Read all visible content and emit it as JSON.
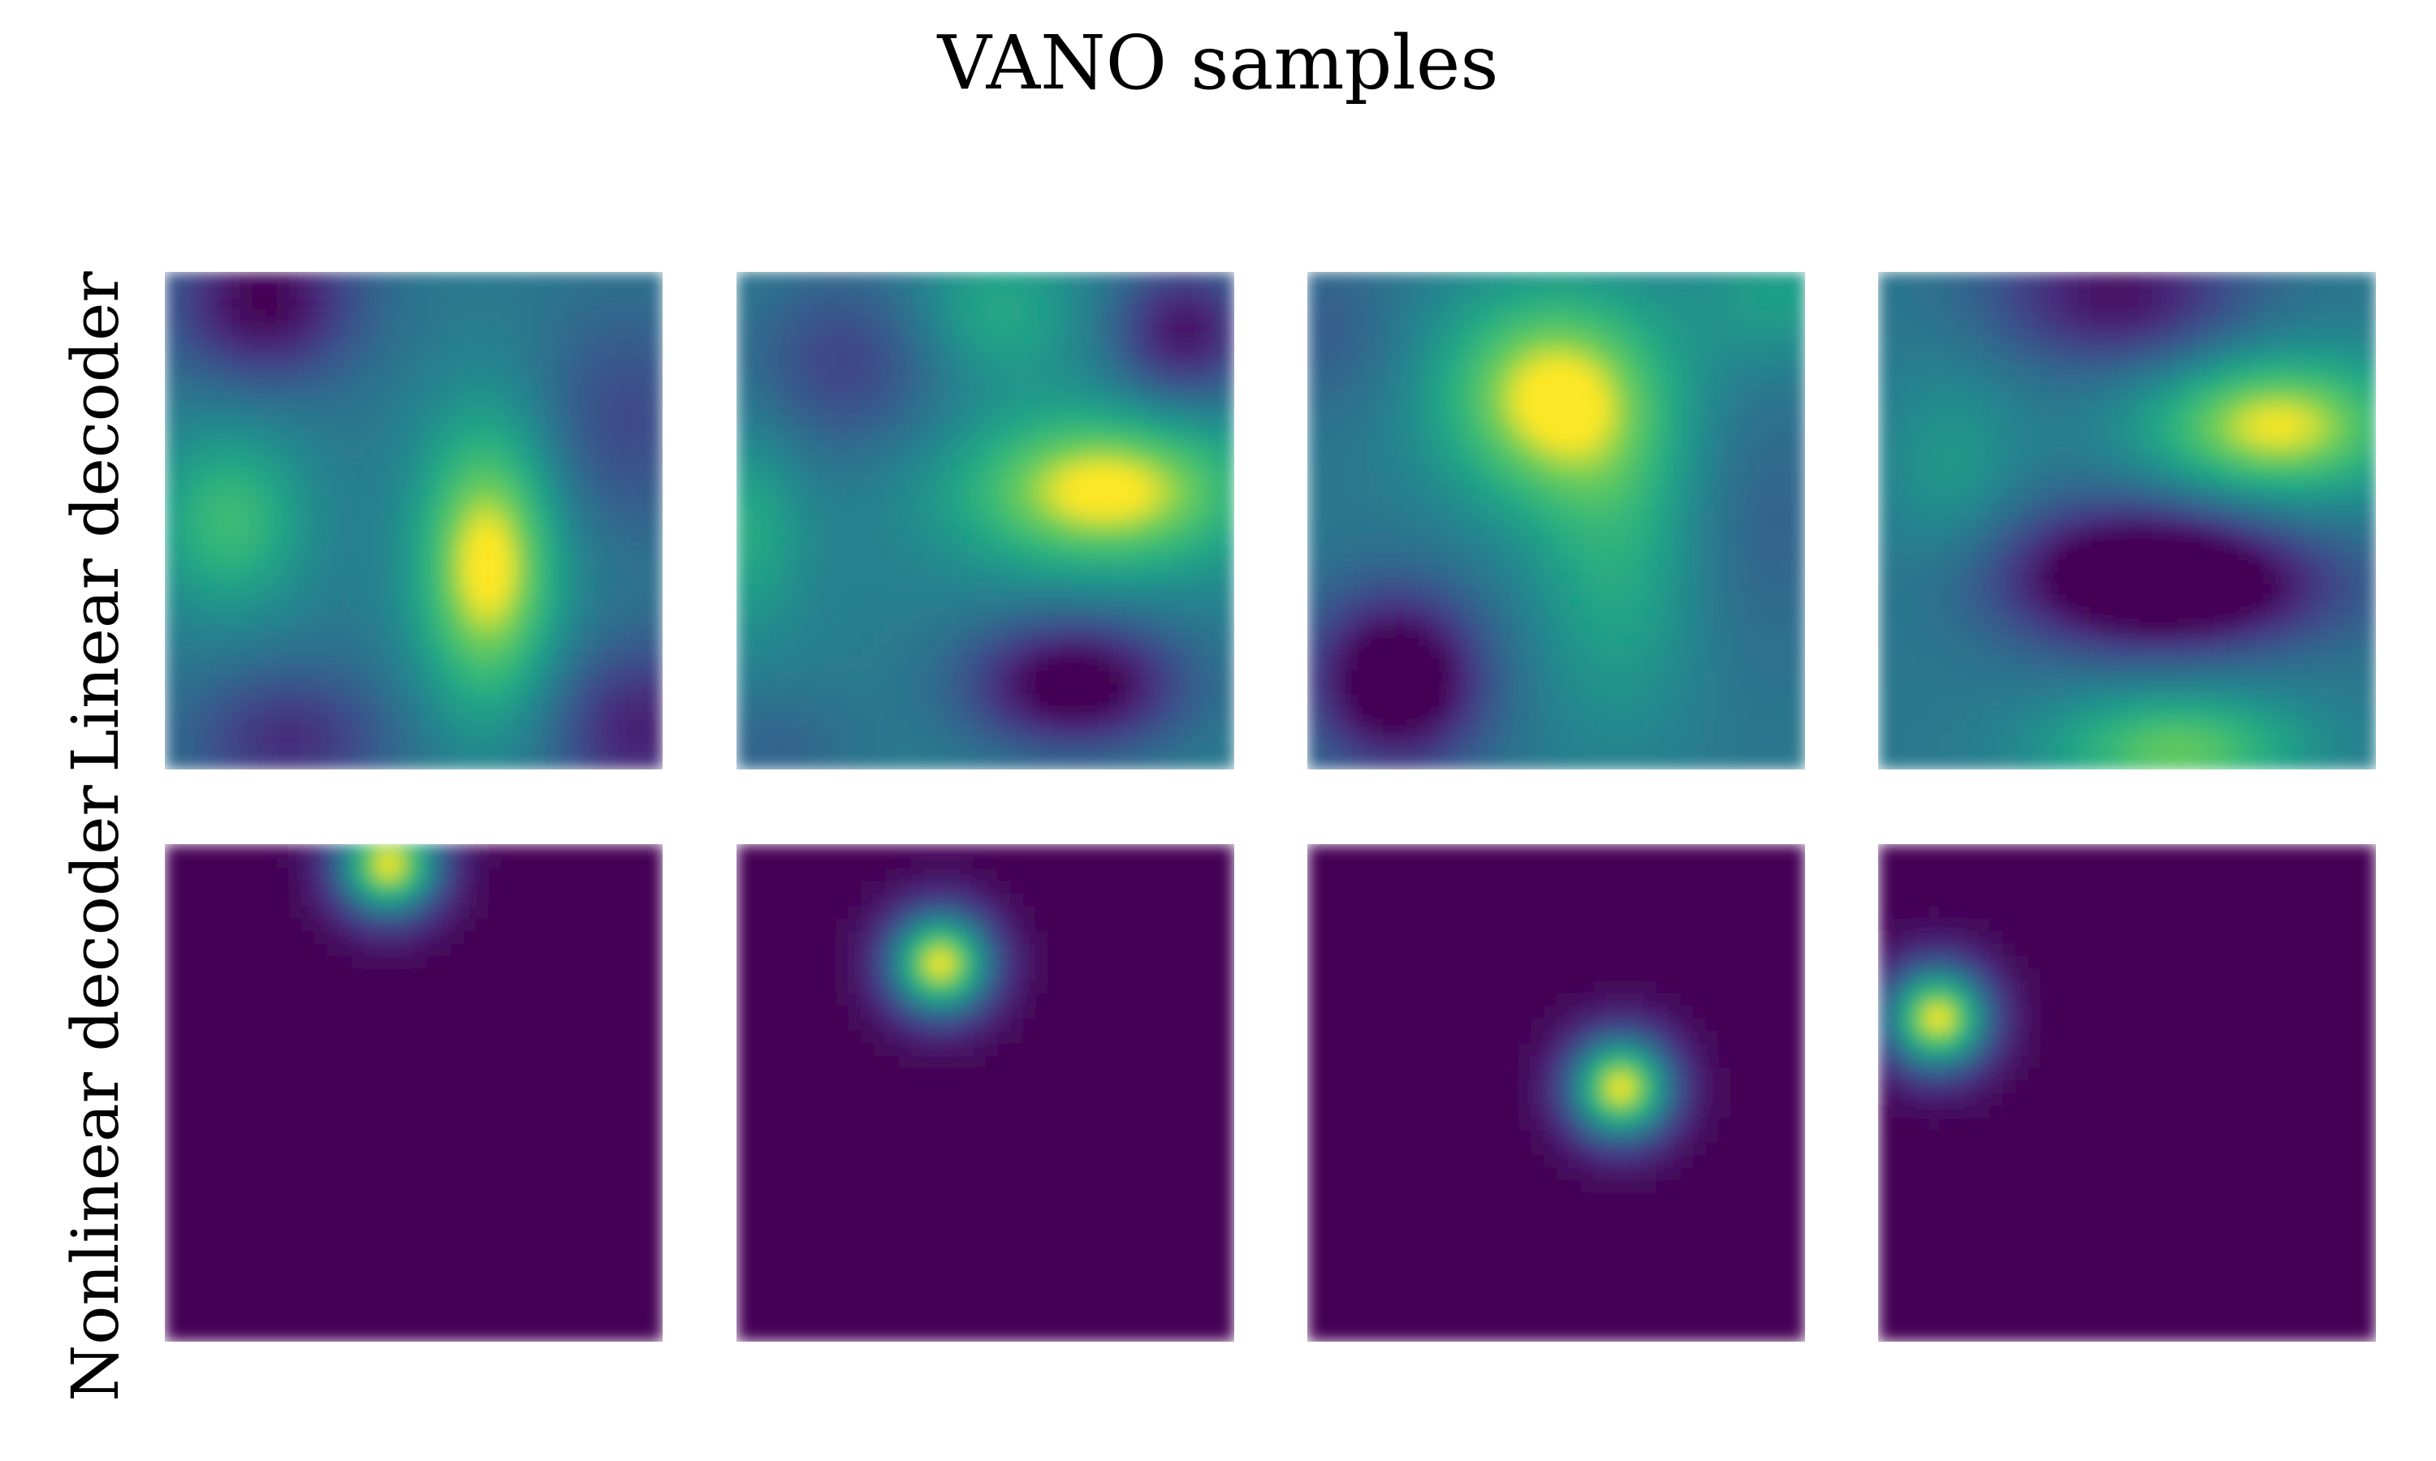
{
  "chart_data": {
    "type": "heatmap",
    "title": "VANO samples",
    "xlabel": "",
    "ylabel": "",
    "colormap": "viridis",
    "axes_visible": false,
    "grid": false,
    "colorbar": false,
    "domain": {
      "x": [
        0,
        1
      ],
      "y": [
        0,
        1
      ]
    },
    "rows": [
      {
        "label": "Linear decoder",
        "samples": [
          {
            "description": "smooth Gaussian-process-like field",
            "background": 0.45,
            "bumps": [
              {
                "x": 0.2,
                "y": 0.06,
                "sx": 0.13,
                "sy": 0.11,
                "amp": -0.45
              },
              {
                "x": 0.13,
                "y": 0.5,
                "sx": 0.11,
                "sy": 0.13,
                "amp": 0.32
              },
              {
                "x": 0.65,
                "y": 0.59,
                "sx": 0.1,
                "sy": 0.2,
                "amp": 0.58
              },
              {
                "x": 0.25,
                "y": 0.94,
                "sx": 0.14,
                "sy": 0.1,
                "amp": -0.3
              },
              {
                "x": 0.92,
                "y": 0.3,
                "sx": 0.12,
                "sy": 0.16,
                "amp": -0.2
              },
              {
                "x": 0.95,
                "y": 0.92,
                "sx": 0.12,
                "sy": 0.12,
                "amp": -0.35
              }
            ]
          },
          {
            "description": "smooth Gaussian-process-like field",
            "background": 0.48,
            "bumps": [
              {
                "x": 0.74,
                "y": 0.44,
                "sx": 0.2,
                "sy": 0.11,
                "amp": 0.55
              },
              {
                "x": 0.68,
                "y": 0.83,
                "sx": 0.15,
                "sy": 0.09,
                "amp": -0.55
              },
              {
                "x": 0.9,
                "y": 0.12,
                "sx": 0.1,
                "sy": 0.1,
                "amp": -0.42
              },
              {
                "x": 0.22,
                "y": 0.18,
                "sx": 0.14,
                "sy": 0.13,
                "amp": -0.25
              },
              {
                "x": 0.02,
                "y": 0.52,
                "sx": 0.08,
                "sy": 0.14,
                "amp": 0.2
              },
              {
                "x": 0.52,
                "y": 0.08,
                "sx": 0.12,
                "sy": 0.1,
                "amp": 0.2
              },
              {
                "x": 0.08,
                "y": 0.95,
                "sx": 0.12,
                "sy": 0.08,
                "amp": -0.12
              }
            ]
          },
          {
            "description": "smooth Gaussian-process-like field",
            "background": 0.45,
            "bumps": [
              {
                "x": 0.49,
                "y": 0.25,
                "sx": 0.16,
                "sy": 0.15,
                "amp": 0.55
              },
              {
                "x": 0.62,
                "y": 0.58,
                "sx": 0.12,
                "sy": 0.24,
                "amp": 0.22
              },
              {
                "x": 0.18,
                "y": 0.82,
                "sx": 0.12,
                "sy": 0.12,
                "amp": -0.6
              },
              {
                "x": 0.92,
                "y": 0.5,
                "sx": 0.1,
                "sy": 0.2,
                "amp": -0.1
              },
              {
                "x": 0.95,
                "y": 0.05,
                "sx": 0.12,
                "sy": 0.1,
                "amp": 0.18
              },
              {
                "x": 0.05,
                "y": 0.12,
                "sx": 0.1,
                "sy": 0.12,
                "amp": -0.12
              }
            ]
          },
          {
            "description": "smooth Gaussian-process-like field",
            "background": 0.45,
            "bumps": [
              {
                "x": 0.8,
                "y": 0.31,
                "sx": 0.18,
                "sy": 0.1,
                "amp": 0.55
              },
              {
                "x": 0.52,
                "y": 0.61,
                "sx": 0.2,
                "sy": 0.1,
                "amp": -0.58
              },
              {
                "x": 0.72,
                "y": 0.64,
                "sx": 0.2,
                "sy": 0.08,
                "amp": -0.22
              },
              {
                "x": 0.6,
                "y": 0.96,
                "sx": 0.18,
                "sy": 0.08,
                "amp": 0.4
              },
              {
                "x": 0.48,
                "y": 0.05,
                "sx": 0.18,
                "sy": 0.1,
                "amp": -0.4
              },
              {
                "x": 0.15,
                "y": 0.4,
                "sx": 0.1,
                "sy": 0.15,
                "amp": 0.15
              }
            ]
          }
        ]
      },
      {
        "label": "Nonlinear decoder",
        "samples": [
          {
            "description": "single localized blob",
            "background": 0.0,
            "bumps": [
              {
                "x": 0.45,
                "y": 0.04,
                "sx": 0.075,
                "sy": 0.075,
                "amp": 1.0
              }
            ]
          },
          {
            "description": "single localized blob",
            "background": 0.0,
            "bumps": [
              {
                "x": 0.41,
                "y": 0.24,
                "sx": 0.075,
                "sy": 0.075,
                "amp": 1.0
              }
            ]
          },
          {
            "description": "single localized blob",
            "background": 0.0,
            "bumps": [
              {
                "x": 0.63,
                "y": 0.49,
                "sx": 0.075,
                "sy": 0.075,
                "amp": 1.0
              }
            ]
          },
          {
            "description": "single localized blob",
            "background": 0.0,
            "bumps": [
              {
                "x": 0.12,
                "y": 0.35,
                "sx": 0.075,
                "sy": 0.075,
                "amp": 1.0
              }
            ]
          }
        ]
      }
    ]
  }
}
